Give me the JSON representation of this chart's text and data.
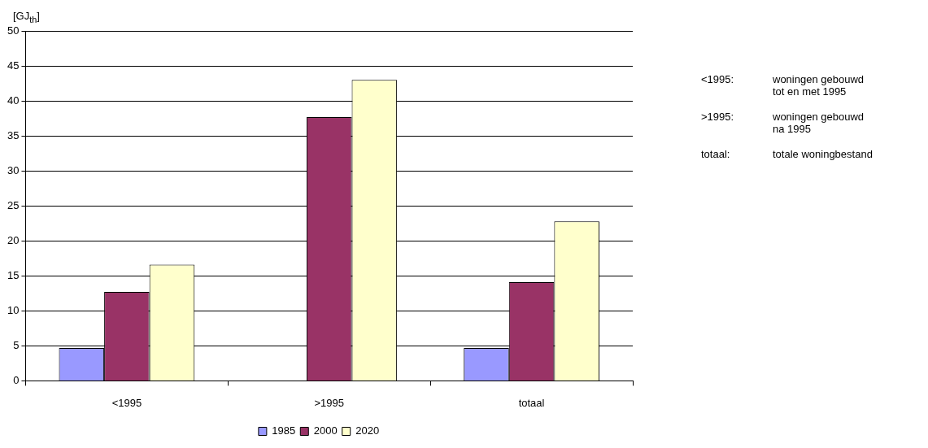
{
  "chart_data": {
    "type": "bar",
    "ylabel": "[GJ$_{th}$]",
    "categories": [
      "<1995",
      ">1995",
      "totaal"
    ],
    "series": [
      {
        "name": "1985",
        "color": "#9999ff",
        "values": [
          4.7,
          null,
          4.7
        ]
      },
      {
        "name": "2000",
        "color": "#993366",
        "values": [
          12.7,
          37.7,
          14.1
        ]
      },
      {
        "name": "2020",
        "color": "#ffffcc",
        "values": [
          16.6,
          43.0,
          22.8
        ]
      }
    ],
    "ylim": [
      0,
      50
    ],
    "yticks": [
      0,
      5,
      10,
      15,
      20,
      25,
      30,
      35,
      40,
      45,
      50
    ],
    "grid": "y",
    "legend": "bottom",
    "annotations": [
      "<1995:\twoningen gebouwd\ntot en met 1995",
      ">1995:\twoningen gebouwd\nna 1995",
      "totaal:\ttotale woningbestand"
    ]
  }
}
